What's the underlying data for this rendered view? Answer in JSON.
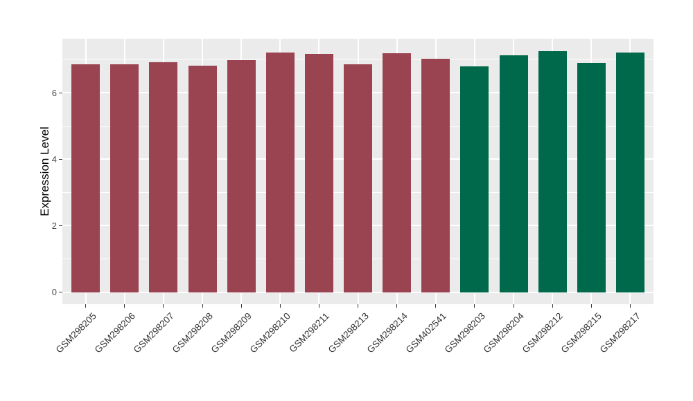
{
  "figure": {
    "background": "#ffffff",
    "panel_background": "#EBEBEB",
    "grid_color": "#FFFFFF",
    "axis_tick_text_color": "#4D4D4D",
    "x_label_text_color": "#333333",
    "axis_title_color": "#000000",
    "bar_color_group_left": "#9B4451",
    "bar_color_group_right": "#01694B"
  },
  "chart_data": {
    "type": "bar",
    "title": "",
    "xlabel": "",
    "ylabel": "Expression Level",
    "categories": [
      "GSM298205",
      "GSM298206",
      "GSM298207",
      "GSM298208",
      "GSM298209",
      "GSM298210",
      "GSM298211",
      "GSM298213",
      "GSM298214",
      "GSM402541",
      "GSM298203",
      "GSM298204",
      "GSM298212",
      "GSM298215",
      "GSM298217"
    ],
    "values": [
      6.86,
      6.86,
      6.91,
      6.81,
      6.98,
      7.21,
      7.17,
      6.86,
      7.18,
      7.02,
      6.78,
      7.12,
      7.25,
      6.89,
      7.21
    ],
    "bar_colors": [
      "#9B4451",
      "#9B4451",
      "#9B4451",
      "#9B4451",
      "#9B4451",
      "#9B4451",
      "#9B4451",
      "#9B4451",
      "#9B4451",
      "#9B4451",
      "#01694B",
      "#01694B",
      "#01694B",
      "#01694B",
      "#01694B"
    ],
    "yticks": [
      0,
      2,
      4,
      6
    ],
    "y_minor_ticks": [
      1,
      3,
      5,
      7
    ],
    "ylim": [
      -0.36,
      7.62
    ],
    "bar_base": 0,
    "grid": true,
    "legend": "none",
    "x_tick_angle": 45
  }
}
